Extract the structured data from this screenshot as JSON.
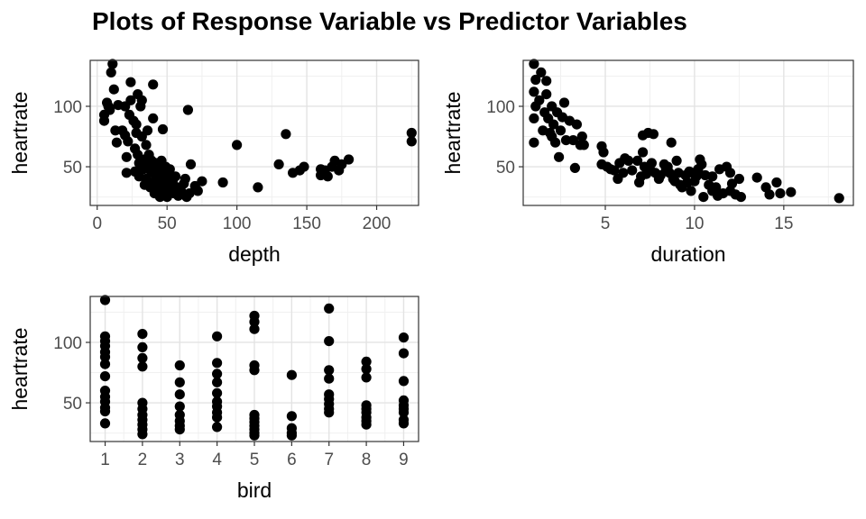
{
  "title": "Plots of Response Variable vs Predictor Variables",
  "chart_data": [
    {
      "type": "scatter",
      "xlabel": "depth",
      "ylabel": "heartrate",
      "xticks": [
        0,
        50,
        100,
        150,
        200
      ],
      "yticks": [
        50,
        100
      ],
      "xlim": [
        -5,
        230
      ],
      "ylim": [
        18,
        138
      ],
      "grid": true,
      "points": [
        [
          5,
          88
        ],
        [
          5,
          93
        ],
        [
          7,
          103
        ],
        [
          9,
          97
        ],
        [
          10,
          128
        ],
        [
          11,
          135
        ],
        [
          12,
          114
        ],
        [
          8,
          100
        ],
        [
          13,
          80
        ],
        [
          14,
          70
        ],
        [
          15,
          101
        ],
        [
          18,
          80
        ],
        [
          20,
          100
        ],
        [
          20,
          76
        ],
        [
          21,
          58
        ],
        [
          21,
          45
        ],
        [
          22,
          71
        ],
        [
          23,
          93
        ],
        [
          24,
          120
        ],
        [
          24,
          105
        ],
        [
          26,
          88
        ],
        [
          27,
          65
        ],
        [
          27,
          46
        ],
        [
          28,
          85
        ],
        [
          28,
          78
        ],
        [
          29,
          110
        ],
        [
          29,
          60
        ],
        [
          30,
          53
        ],
        [
          30,
          42
        ],
        [
          31,
          100
        ],
        [
          32,
          105
        ],
        [
          32,
          75
        ],
        [
          33,
          48
        ],
        [
          34,
          56
        ],
        [
          34,
          35
        ],
        [
          35,
          68
        ],
        [
          35,
          40
        ],
        [
          36,
          80
        ],
        [
          36,
          50
        ],
        [
          37,
          60
        ],
        [
          38,
          47
        ],
        [
          38,
          33
        ],
        [
          39,
          55
        ],
        [
          40,
          118
        ],
        [
          40,
          37
        ],
        [
          40,
          90
        ],
        [
          41,
          44
        ],
        [
          41,
          28
        ],
        [
          42,
          53
        ],
        [
          42,
          40
        ],
        [
          43,
          34
        ],
        [
          44,
          48
        ],
        [
          44,
          30
        ],
        [
          45,
          25
        ],
        [
          45,
          38
        ],
        [
          46,
          55
        ],
        [
          46,
          45
        ],
        [
          47,
          81
        ],
        [
          47,
          33
        ],
        [
          48,
          27
        ],
        [
          49,
          50
        ],
        [
          49,
          40
        ],
        [
          50,
          25
        ],
        [
          51,
          43
        ],
        [
          52,
          35
        ],
        [
          52,
          48
        ],
        [
          53,
          30
        ],
        [
          54,
          38
        ],
        [
          55,
          28
        ],
        [
          56,
          42
        ],
        [
          57,
          33
        ],
        [
          58,
          26
        ],
        [
          60,
          30
        ],
        [
          62,
          36
        ],
        [
          63,
          40
        ],
        [
          64,
          25
        ],
        [
          65,
          97
        ],
        [
          66,
          28
        ],
        [
          67,
          52
        ],
        [
          70,
          34
        ],
        [
          72,
          30
        ],
        [
          75,
          38
        ],
        [
          90,
          37
        ],
        [
          100,
          68
        ],
        [
          115,
          33
        ],
        [
          130,
          52
        ],
        [
          135,
          77
        ],
        [
          140,
          45
        ],
        [
          145,
          47
        ],
        [
          148,
          50
        ],
        [
          160,
          48
        ],
        [
          160,
          43
        ],
        [
          163,
          47
        ],
        [
          165,
          42
        ],
        [
          168,
          50
        ],
        [
          170,
          55
        ],
        [
          173,
          47
        ],
        [
          175,
          52
        ],
        [
          180,
          56
        ],
        [
          225,
          78
        ],
        [
          225,
          71
        ]
      ]
    },
    {
      "type": "scatter",
      "xlabel": "duration",
      "ylabel": "heartrate",
      "xticks": [
        5,
        10,
        15
      ],
      "yticks": [
        50,
        100
      ],
      "xlim": [
        0.4,
        18.9
      ],
      "ylim": [
        18,
        138
      ],
      "grid": true,
      "points": [
        [
          1.0,
          135
        ],
        [
          1.1,
          122
        ],
        [
          1.0,
          112
        ],
        [
          1.1,
          100
        ],
        [
          1.0,
          90
        ],
        [
          1.0,
          70
        ],
        [
          1.3,
          105
        ],
        [
          1.4,
          128
        ],
        [
          1.5,
          80
        ],
        [
          1.6,
          95
        ],
        [
          1.7,
          121
        ],
        [
          1.7,
          110
        ],
        [
          1.8,
          90
        ],
        [
          1.9,
          78
        ],
        [
          2.0,
          75
        ],
        [
          2.0,
          100
        ],
        [
          2.1,
          85
        ],
        [
          2.2,
          70
        ],
        [
          2.3,
          95
        ],
        [
          2.4,
          58
        ],
        [
          2.5,
          80
        ],
        [
          2.6,
          91
        ],
        [
          2.7,
          103
        ],
        [
          2.8,
          72
        ],
        [
          3.0,
          88
        ],
        [
          3.2,
          72
        ],
        [
          3.3,
          49
        ],
        [
          3.4,
          85
        ],
        [
          3.6,
          68
        ],
        [
          3.7,
          75
        ],
        [
          3.8,
          68
        ],
        [
          4.8,
          67
        ],
        [
          4.9,
          62
        ],
        [
          4.8,
          52
        ],
        [
          5.1,
          50
        ],
        [
          5.3,
          48
        ],
        [
          5.5,
          47
        ],
        [
          5.7,
          40
        ],
        [
          5.8,
          53
        ],
        [
          6.0,
          45
        ],
        [
          6.1,
          57
        ],
        [
          6.3,
          55
        ],
        [
          6.5,
          47
        ],
        [
          6.8,
          55
        ],
        [
          6.9,
          37
        ],
        [
          7.0,
          42
        ],
        [
          7.1,
          62
        ],
        [
          7.1,
          76
        ],
        [
          7.2,
          50
        ],
        [
          7.3,
          44
        ],
        [
          7.4,
          78
        ],
        [
          7.5,
          48
        ],
        [
          7.6,
          53
        ],
        [
          7.7,
          77
        ],
        [
          7.8,
          45
        ],
        [
          8.0,
          40
        ],
        [
          8.1,
          43
        ],
        [
          8.3,
          52
        ],
        [
          8.4,
          48
        ],
        [
          8.5,
          50
        ],
        [
          8.6,
          45
        ],
        [
          8.7,
          70
        ],
        [
          8.8,
          40
        ],
        [
          8.9,
          38
        ],
        [
          9.0,
          55
        ],
        [
          9.1,
          45
        ],
        [
          9.2,
          35
        ],
        [
          9.3,
          33
        ],
        [
          9.5,
          43
        ],
        [
          9.6,
          37
        ],
        [
          9.7,
          46
        ],
        [
          9.8,
          30
        ],
        [
          9.9,
          45
        ],
        [
          10.0,
          38
        ],
        [
          10.1,
          42
        ],
        [
          10.2,
          48
        ],
        [
          10.3,
          56
        ],
        [
          10.4,
          52
        ],
        [
          10.5,
          25
        ],
        [
          10.6,
          43
        ],
        [
          10.8,
          35
        ],
        [
          11.0,
          30
        ],
        [
          11.0,
          42
        ],
        [
          11.2,
          33
        ],
        [
          11.4,
          48
        ],
        [
          11.6,
          28
        ],
        [
          11.8,
          50
        ],
        [
          12.0,
          45
        ],
        [
          12.1,
          36
        ],
        [
          12.3,
          27
        ],
        [
          12.5,
          40
        ],
        [
          12.6,
          25
        ],
        [
          13.5,
          41
        ],
        [
          14.0,
          33
        ],
        [
          14.2,
          27
        ],
        [
          14.6,
          37
        ],
        [
          14.8,
          28
        ],
        [
          15.4,
          29
        ],
        [
          18.1,
          24
        ],
        [
          12.0,
          30
        ],
        [
          11.3,
          26
        ]
      ]
    },
    {
      "type": "scatter",
      "xlabel": "bird",
      "ylabel": "heartrate",
      "xticks": [
        1,
        2,
        3,
        4,
        5,
        6,
        7,
        8,
        9
      ],
      "yticks": [
        50,
        100
      ],
      "xlim": [
        0.6,
        9.4
      ],
      "ylim": [
        18,
        138
      ],
      "grid": true,
      "points": [
        [
          1,
          135
        ],
        [
          1,
          105
        ],
        [
          1,
          101
        ],
        [
          1,
          97
        ],
        [
          1,
          92
        ],
        [
          1,
          88
        ],
        [
          1,
          82
        ],
        [
          1,
          72
        ],
        [
          1,
          60
        ],
        [
          1,
          55
        ],
        [
          1,
          51
        ],
        [
          1,
          46
        ],
        [
          1,
          43
        ],
        [
          1,
          33
        ],
        [
          2,
          107
        ],
        [
          2,
          96
        ],
        [
          2,
          87
        ],
        [
          2,
          80
        ],
        [
          2,
          50
        ],
        [
          2,
          45
        ],
        [
          2,
          40
        ],
        [
          2,
          36
        ],
        [
          2,
          32
        ],
        [
          2,
          28
        ],
        [
          2,
          24
        ],
        [
          3,
          81
        ],
        [
          3,
          67
        ],
        [
          3,
          57
        ],
        [
          3,
          47
        ],
        [
          3,
          40
        ],
        [
          3,
          35
        ],
        [
          3,
          31
        ],
        [
          3,
          28
        ],
        [
          4,
          105
        ],
        [
          4,
          83
        ],
        [
          4,
          74
        ],
        [
          4,
          67
        ],
        [
          4,
          58
        ],
        [
          4,
          51
        ],
        [
          4,
          47
        ],
        [
          4,
          42
        ],
        [
          4,
          38
        ],
        [
          4,
          30
        ],
        [
          5,
          122
        ],
        [
          5,
          117
        ],
        [
          5,
          111
        ],
        [
          5,
          81
        ],
        [
          5,
          77
        ],
        [
          5,
          40
        ],
        [
          5,
          37
        ],
        [
          5,
          34
        ],
        [
          5,
          31
        ],
        [
          5,
          28
        ],
        [
          5,
          25
        ],
        [
          5,
          23
        ],
        [
          6,
          73
        ],
        [
          6,
          39
        ],
        [
          6,
          29
        ],
        [
          6,
          25
        ],
        [
          6,
          23
        ],
        [
          7,
          128
        ],
        [
          7,
          101
        ],
        [
          7,
          77
        ],
        [
          7,
          70
        ],
        [
          7,
          57
        ],
        [
          7,
          53
        ],
        [
          7,
          49
        ],
        [
          7,
          45
        ],
        [
          7,
          42
        ],
        [
          8,
          84
        ],
        [
          8,
          78
        ],
        [
          8,
          71
        ],
        [
          8,
          48
        ],
        [
          8,
          45
        ],
        [
          8,
          42
        ],
        [
          8,
          38
        ],
        [
          8,
          35
        ],
        [
          8,
          32
        ],
        [
          9,
          104
        ],
        [
          9,
          91
        ],
        [
          9,
          68
        ],
        [
          9,
          52
        ],
        [
          9,
          48
        ],
        [
          9,
          45
        ],
        [
          9,
          42
        ],
        [
          9,
          36
        ],
        [
          9,
          33
        ]
      ]
    }
  ]
}
